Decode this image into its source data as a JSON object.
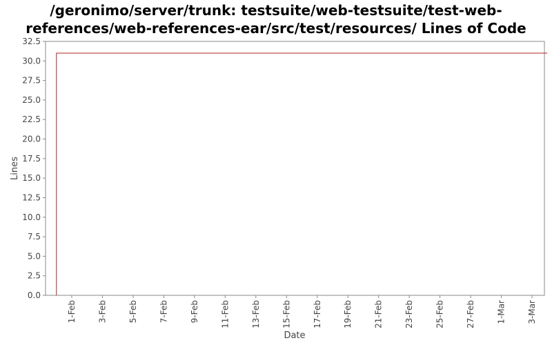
{
  "chart_data": {
    "type": "line",
    "title": "/geronimo/server/trunk: testsuite/web-testsuite/test-web-references/web-references-ear/src/test/resources/ Lines of Code",
    "xlabel": "Date",
    "ylabel": "Lines",
    "x_tick_labels": [
      "1-Feb",
      "3-Feb",
      "5-Feb",
      "7-Feb",
      "9-Feb",
      "11-Feb",
      "13-Feb",
      "15-Feb",
      "17-Feb",
      "19-Feb",
      "21-Feb",
      "23-Feb",
      "25-Feb",
      "27-Feb",
      "1-Mar",
      "3-Mar"
    ],
    "y_ticks": [
      "0.0",
      "2.5",
      "5.0",
      "7.5",
      "10.0",
      "12.5",
      "15.0",
      "17.5",
      "20.0",
      "22.5",
      "25.0",
      "27.5",
      "30.0",
      "32.5"
    ],
    "ylim": [
      0,
      32.5
    ],
    "grid": false,
    "series_color": "#b22222",
    "series": [
      {
        "x": [
          "2008-01-31",
          "2008-01-31",
          "2008-03-03"
        ],
        "values": [
          0,
          31,
          31
        ]
      }
    ]
  }
}
